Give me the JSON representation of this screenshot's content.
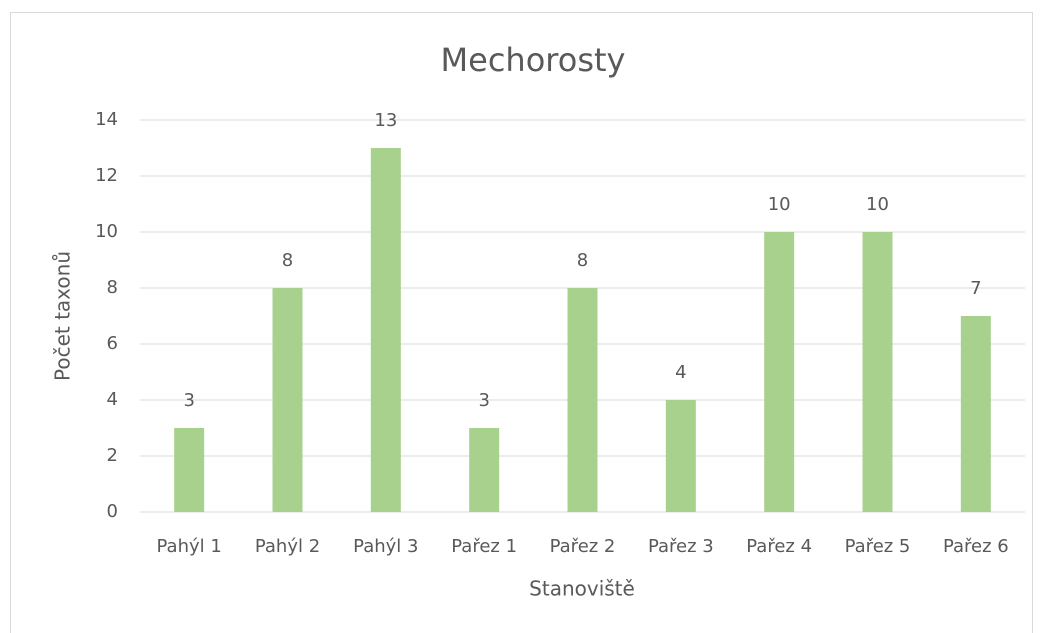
{
  "chart_data": {
    "type": "bar",
    "title": "Mechorosty",
    "x_label": "Stanoviště",
    "y_label": "Počet taxonů",
    "categories": [
      "Pahýl 1",
      "Pahýl 2",
      "Pahýl 3",
      "Pařez 1",
      "Pařez 2",
      "Pařez 3",
      "Pařez 4",
      "Pařez 5",
      "Pařez 6"
    ],
    "values": [
      3,
      8,
      13,
      3,
      8,
      4,
      10,
      10,
      7
    ],
    "color": "#a9d18e",
    "ylim": [
      0,
      14
    ],
    "yticks": [
      0,
      2,
      4,
      6,
      8,
      10,
      12,
      14
    ],
    "grid": true
  }
}
